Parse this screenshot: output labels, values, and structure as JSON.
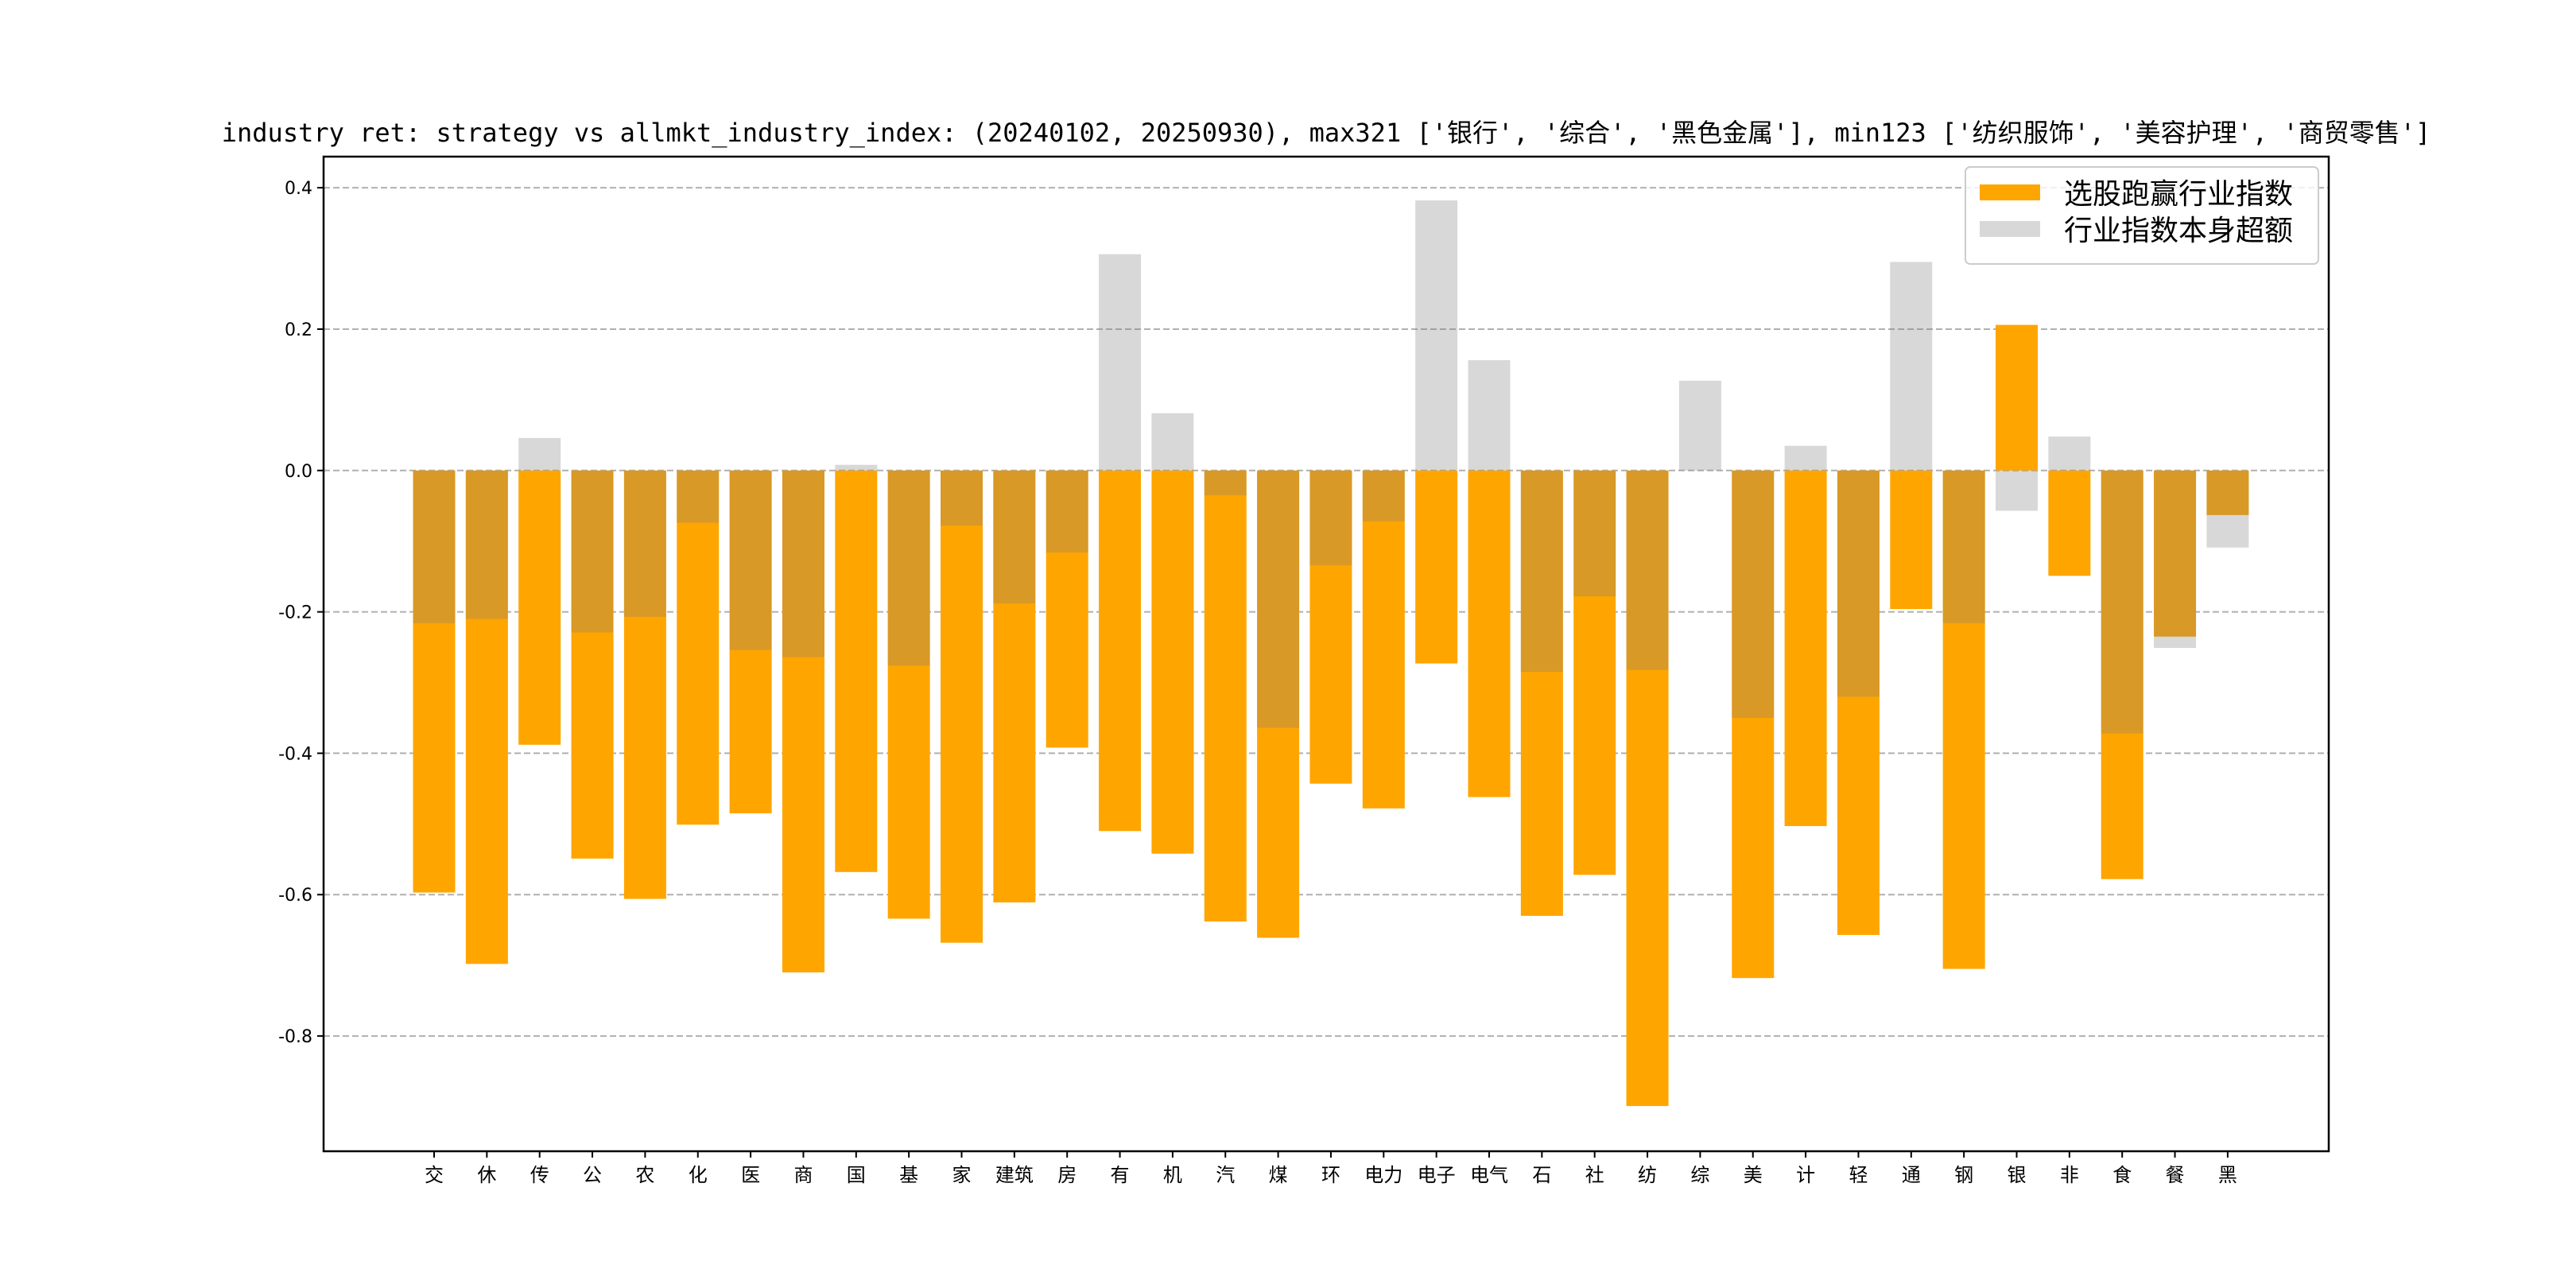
{
  "chart_data": {
    "type": "bar",
    "title": "industry ret: strategy vs allmkt_industry_index: (20240102, 20250930), max321 ['银行', '综合', '黑色金属'], min123 ['纺织服饰', '美容护理', '商贸零售']",
    "xlabel": "",
    "ylabel": "",
    "ylim": [
      -0.963,
      0.444
    ],
    "yticks": [
      0.4,
      0.2,
      0.0,
      -0.2,
      -0.4,
      -0.6,
      -0.8
    ],
    "ytick_labels": [
      "0.4",
      "0.2",
      "0.0",
      "-0.2",
      "-0.4",
      "-0.6",
      "-0.8"
    ],
    "grid": "horizontal dashed",
    "legend_position": "top-right",
    "categories": [
      "交",
      "休",
      "传",
      "公",
      "农",
      "化",
      "医",
      "商",
      "国",
      "基",
      "家",
      "建筑",
      "房",
      "有",
      "机",
      "汽",
      "煤",
      "环",
      "电力",
      "电子",
      "电气",
      "石",
      "社",
      "纺",
      "综",
      "美",
      "计",
      "轻",
      "通",
      "钢",
      "银",
      "非",
      "食",
      "餐",
      "黑"
    ],
    "series": [
      {
        "name": "选股跑赢行业指数",
        "color": "#ffa500",
        "values": [
          -0.597,
          -0.698,
          -0.388,
          -0.549,
          -0.606,
          -0.501,
          -0.485,
          -0.71,
          -0.568,
          -0.634,
          -0.668,
          -0.611,
          -0.392,
          -0.51,
          -0.542,
          -0.638,
          -0.661,
          -0.443,
          -0.478,
          -0.273,
          -0.462,
          -0.63,
          -0.572,
          -0.899,
          0.0,
          -0.718,
          -0.503,
          -0.657,
          -0.196,
          -0.705,
          0.206,
          -0.149,
          -0.578,
          -0.235,
          -0.063
        ]
      },
      {
        "name": "行业指数本身超额",
        "color": "#7d7d7d",
        "alpha": 0.3,
        "values": [
          -0.216,
          -0.21,
          0.046,
          -0.229,
          -0.207,
          -0.074,
          -0.254,
          -0.264,
          0.008,
          -0.276,
          -0.078,
          -0.188,
          -0.116,
          0.306,
          0.081,
          -0.035,
          -0.364,
          -0.134,
          -0.072,
          0.382,
          0.156,
          -0.285,
          -0.178,
          -0.282,
          0.127,
          -0.35,
          0.035,
          -0.32,
          0.295,
          -0.216,
          -0.057,
          0.048,
          -0.372,
          -0.251,
          -0.109
        ]
      }
    ]
  }
}
